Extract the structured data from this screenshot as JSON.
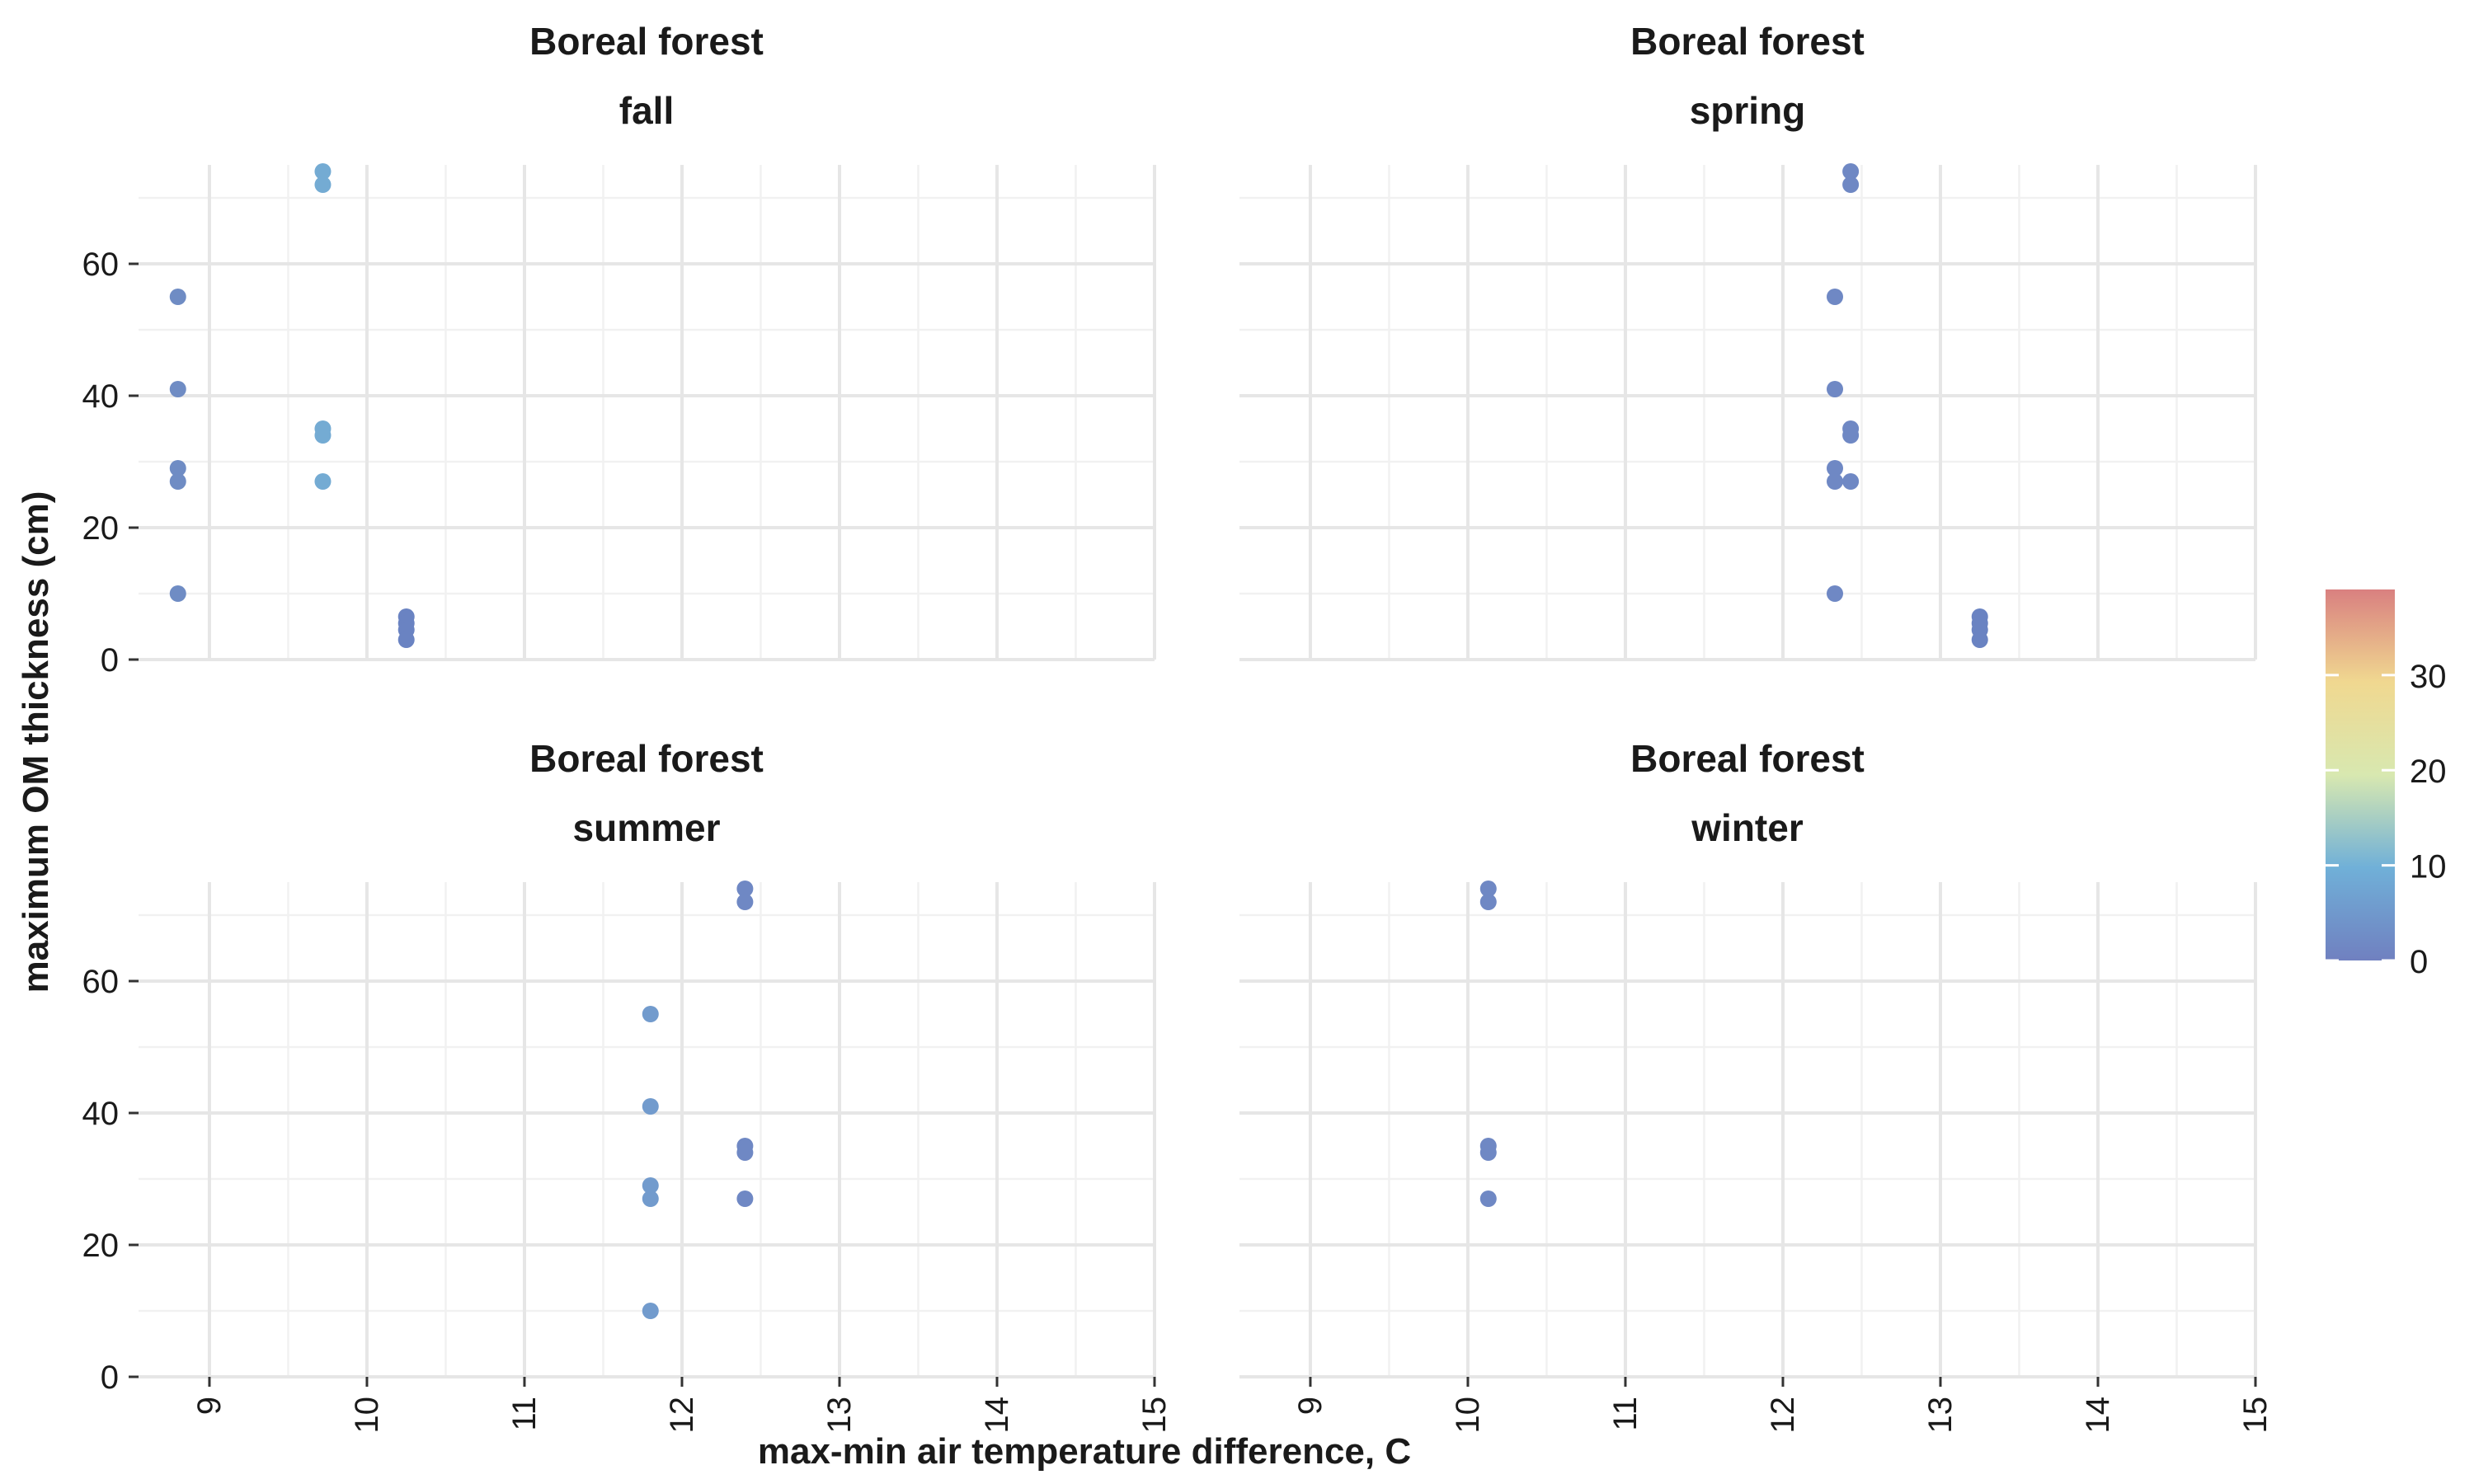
{
  "chart_data": {
    "type": "scatter",
    "xlabel": "max-min air temperature difference, C",
    "ylabel": "maximum OM thickness (cm)",
    "xlim": [
      8.55,
      15.0
    ],
    "ylim": [
      0,
      75
    ],
    "x_ticks": [
      9,
      10,
      11,
      12,
      13,
      14,
      15
    ],
    "y_ticks": [
      0,
      20,
      40,
      60
    ],
    "grid": true,
    "legend": {
      "type": "colorbar",
      "placement": "right",
      "ticks": [
        0,
        10,
        20,
        30
      ],
      "range": [
        0,
        39
      ],
      "colors": [
        "#7080c0",
        "#70b0d8",
        "#d8e8b0",
        "#f0d890",
        "#d98080"
      ]
    },
    "panels": [
      {
        "strip_top": "Boreal forest",
        "strip_bottom": "fall",
        "points": [
          {
            "x": 8.8,
            "y": 55,
            "color": "#6f8cc4"
          },
          {
            "x": 8.8,
            "y": 41,
            "color": "#6f8cc4"
          },
          {
            "x": 8.8,
            "y": 29,
            "color": "#6f8cc4"
          },
          {
            "x": 8.8,
            "y": 27,
            "color": "#6f8cc4"
          },
          {
            "x": 8.8,
            "y": 10,
            "color": "#6f8cc4"
          },
          {
            "x": 9.72,
            "y": 74,
            "color": "#74abd3"
          },
          {
            "x": 9.72,
            "y": 72,
            "color": "#74abd3"
          },
          {
            "x": 9.72,
            "y": 35,
            "color": "#74abd3"
          },
          {
            "x": 9.72,
            "y": 34,
            "color": "#74abd3"
          },
          {
            "x": 9.72,
            "y": 27,
            "color": "#74abd3"
          },
          {
            "x": 10.25,
            "y": 6.5,
            "color": "#6a83c2"
          },
          {
            "x": 10.25,
            "y": 5.5,
            "color": "#6a83c2"
          },
          {
            "x": 10.25,
            "y": 4.5,
            "color": "#6a83c2"
          },
          {
            "x": 10.25,
            "y": 3,
            "color": "#6a83c2"
          }
        ]
      },
      {
        "strip_top": "Boreal forest",
        "strip_bottom": "spring",
        "points": [
          {
            "x": 12.43,
            "y": 74,
            "color": "#6f88c4"
          },
          {
            "x": 12.43,
            "y": 72,
            "color": "#6f88c4"
          },
          {
            "x": 12.33,
            "y": 55,
            "color": "#6f88c4"
          },
          {
            "x": 12.33,
            "y": 41,
            "color": "#6f88c4"
          },
          {
            "x": 12.43,
            "y": 35,
            "color": "#6f88c4"
          },
          {
            "x": 12.43,
            "y": 34,
            "color": "#6f88c4"
          },
          {
            "x": 12.33,
            "y": 29,
            "color": "#6f88c4"
          },
          {
            "x": 12.33,
            "y": 27,
            "color": "#6f88c4"
          },
          {
            "x": 12.43,
            "y": 27,
            "color": "#6f88c4"
          },
          {
            "x": 12.33,
            "y": 10,
            "color": "#6f88c4"
          },
          {
            "x": 13.25,
            "y": 6.5,
            "color": "#6a83c2"
          },
          {
            "x": 13.25,
            "y": 5.5,
            "color": "#6a83c2"
          },
          {
            "x": 13.25,
            "y": 4.5,
            "color": "#6a83c2"
          },
          {
            "x": 13.25,
            "y": 3,
            "color": "#6a83c2"
          }
        ]
      },
      {
        "strip_top": "Boreal forest",
        "strip_bottom": "summer",
        "points": [
          {
            "x": 12.4,
            "y": 74,
            "color": "#6f88c4"
          },
          {
            "x": 12.4,
            "y": 72,
            "color": "#6f88c4"
          },
          {
            "x": 11.8,
            "y": 55,
            "color": "#729bcd"
          },
          {
            "x": 11.8,
            "y": 41,
            "color": "#729bcd"
          },
          {
            "x": 12.4,
            "y": 35,
            "color": "#6f88c4"
          },
          {
            "x": 12.4,
            "y": 34,
            "color": "#6f88c4"
          },
          {
            "x": 11.8,
            "y": 29,
            "color": "#729bcd"
          },
          {
            "x": 11.8,
            "y": 27,
            "color": "#729bcd"
          },
          {
            "x": 12.4,
            "y": 27,
            "color": "#6f88c4"
          },
          {
            "x": 11.8,
            "y": 10,
            "color": "#729bcd"
          }
        ]
      },
      {
        "strip_top": "Boreal forest",
        "strip_bottom": "winter",
        "points": [
          {
            "x": 10.13,
            "y": 74,
            "color": "#6f88c4"
          },
          {
            "x": 10.13,
            "y": 72,
            "color": "#6f88c4"
          },
          {
            "x": 10.13,
            "y": 35,
            "color": "#6f88c4"
          },
          {
            "x": 10.13,
            "y": 34,
            "color": "#6f88c4"
          },
          {
            "x": 10.13,
            "y": 27,
            "color": "#6f88c4"
          }
        ]
      }
    ]
  }
}
